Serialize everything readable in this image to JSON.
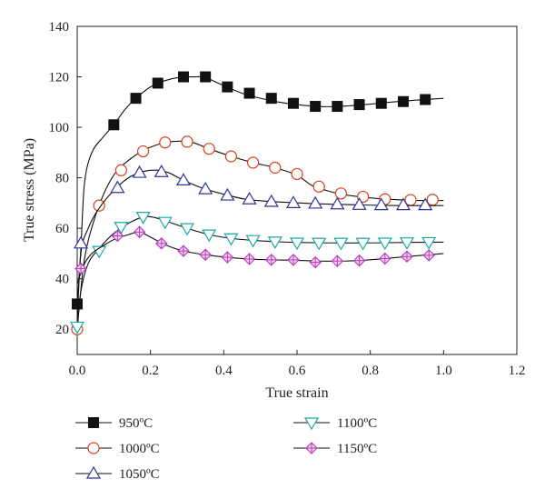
{
  "chart_data": {
    "type": "line",
    "xlabel": "True strain",
    "ylabel": "True stress (MPa)",
    "xlim": [
      0.0,
      1.2
    ],
    "ylim": [
      10,
      140
    ],
    "xticks": [
      0.0,
      0.2,
      0.4,
      0.6,
      0.8,
      1.0,
      1.2
    ],
    "yticks": [
      20,
      40,
      60,
      80,
      100,
      120,
      140
    ],
    "xtick_labels": [
      "0.0",
      "0.2",
      "0.4",
      "0.6",
      "0.8",
      "1.0",
      "1.2"
    ],
    "ytick_labels": [
      "20",
      "40",
      "60",
      "80",
      "100",
      "120",
      "140"
    ],
    "grid": false,
    "legend_position": "below",
    "series": [
      {
        "name": "950ºC",
        "marker": "square",
        "color": "#111111",
        "line": [
          [
            0.0,
            30
          ],
          [
            0.01,
            52
          ],
          [
            0.02,
            78
          ],
          [
            0.04,
            90
          ],
          [
            0.07,
            96
          ],
          [
            0.1,
            101
          ],
          [
            0.13,
            107
          ],
          [
            0.16,
            111.5
          ],
          [
            0.2,
            116
          ],
          [
            0.24,
            118.5
          ],
          [
            0.28,
            119.8
          ],
          [
            0.32,
            120
          ],
          [
            0.35,
            119.7
          ],
          [
            0.4,
            116.5
          ],
          [
            0.45,
            113.5
          ],
          [
            0.5,
            111.5
          ],
          [
            0.55,
            110
          ],
          [
            0.6,
            109
          ],
          [
            0.65,
            108.3
          ],
          [
            0.7,
            108.2
          ],
          [
            0.75,
            108.6
          ],
          [
            0.8,
            109.2
          ],
          [
            0.85,
            109.9
          ],
          [
            0.9,
            110.5
          ],
          [
            0.95,
            111
          ],
          [
            1.0,
            111.5
          ]
        ],
        "markers": [
          [
            0.0,
            30
          ],
          [
            0.1,
            101
          ],
          [
            0.16,
            111.5
          ],
          [
            0.22,
            117.5
          ],
          [
            0.29,
            120
          ],
          [
            0.35,
            120
          ],
          [
            0.41,
            116
          ],
          [
            0.47,
            113.5
          ],
          [
            0.53,
            111.5
          ],
          [
            0.59,
            109.5
          ],
          [
            0.65,
            108.3
          ],
          [
            0.71,
            108.3
          ],
          [
            0.77,
            109
          ],
          [
            0.83,
            109.5
          ],
          [
            0.89,
            110.2
          ],
          [
            0.95,
            111
          ]
        ]
      },
      {
        "name": "1000ºC",
        "marker": "circle",
        "color": "#d9401a",
        "line": [
          [
            0.0,
            20
          ],
          [
            0.02,
            48
          ],
          [
            0.05,
            65
          ],
          [
            0.08,
            76
          ],
          [
            0.11,
            83
          ],
          [
            0.15,
            88
          ],
          [
            0.19,
            91.5
          ],
          [
            0.24,
            94
          ],
          [
            0.28,
            94.5
          ],
          [
            0.31,
            94.3
          ],
          [
            0.36,
            91.5
          ],
          [
            0.42,
            88.5
          ],
          [
            0.48,
            86
          ],
          [
            0.54,
            84
          ],
          [
            0.6,
            81
          ],
          [
            0.64,
            77
          ],
          [
            0.68,
            75
          ],
          [
            0.72,
            73.5
          ],
          [
            0.77,
            72.5
          ],
          [
            0.82,
            71.8
          ],
          [
            0.88,
            71.3
          ],
          [
            0.94,
            71
          ],
          [
            1.0,
            71
          ]
        ],
        "markers": [
          [
            0.0,
            20
          ],
          [
            0.06,
            69
          ],
          [
            0.12,
            83
          ],
          [
            0.18,
            90.5
          ],
          [
            0.24,
            94
          ],
          [
            0.3,
            94.3
          ],
          [
            0.36,
            91.5
          ],
          [
            0.42,
            88.5
          ],
          [
            0.48,
            86
          ],
          [
            0.54,
            84
          ],
          [
            0.6,
            81.5
          ],
          [
            0.66,
            76.5
          ],
          [
            0.72,
            73.8
          ],
          [
            0.78,
            72.5
          ],
          [
            0.84,
            71.5
          ],
          [
            0.91,
            71.2
          ],
          [
            0.97,
            71.3
          ]
        ]
      },
      {
        "name": "1050ºC",
        "marker": "triangle-up",
        "color": "#2f3596",
        "line": [
          [
            0.0,
            22
          ],
          [
            0.01,
            50
          ],
          [
            0.03,
            60
          ],
          [
            0.06,
            68
          ],
          [
            0.1,
            75
          ],
          [
            0.14,
            80
          ],
          [
            0.18,
            82.5
          ],
          [
            0.22,
            83
          ],
          [
            0.25,
            82
          ],
          [
            0.29,
            79
          ],
          [
            0.34,
            76
          ],
          [
            0.4,
            73.5
          ],
          [
            0.46,
            71.5
          ],
          [
            0.52,
            70.7
          ],
          [
            0.58,
            70.2
          ],
          [
            0.64,
            69.8
          ],
          [
            0.7,
            69.5
          ],
          [
            0.76,
            69.3
          ],
          [
            0.82,
            69.1
          ],
          [
            0.88,
            69
          ],
          [
            0.94,
            69
          ],
          [
            1.0,
            69
          ]
        ],
        "markers": [
          [
            0.01,
            54
          ],
          [
            0.11,
            76
          ],
          [
            0.17,
            82
          ],
          [
            0.23,
            82.3
          ],
          [
            0.29,
            79
          ],
          [
            0.35,
            75.5
          ],
          [
            0.41,
            73
          ],
          [
            0.47,
            71.5
          ],
          [
            0.53,
            70.5
          ],
          [
            0.59,
            70
          ],
          [
            0.65,
            69.8
          ],
          [
            0.71,
            69.5
          ],
          [
            0.77,
            69.3
          ],
          [
            0.83,
            69.2
          ],
          [
            0.89,
            69.2
          ],
          [
            0.95,
            69.2
          ]
        ]
      },
      {
        "name": "1100ºC",
        "marker": "triangle-down",
        "color": "#1aa8a8",
        "line": [
          [
            0.0,
            20
          ],
          [
            0.01,
            35
          ],
          [
            0.03,
            46
          ],
          [
            0.06,
            52
          ],
          [
            0.1,
            58
          ],
          [
            0.14,
            62
          ],
          [
            0.18,
            64.5
          ],
          [
            0.21,
            64.3
          ],
          [
            0.25,
            62.5
          ],
          [
            0.3,
            60
          ],
          [
            0.36,
            57.5
          ],
          [
            0.42,
            56
          ],
          [
            0.48,
            55.2
          ],
          [
            0.54,
            54.7
          ],
          [
            0.6,
            54.4
          ],
          [
            0.7,
            54.2
          ],
          [
            0.8,
            54.2
          ],
          [
            0.9,
            54.4
          ],
          [
            1.0,
            54.5
          ]
        ],
        "markers": [
          [
            0.0,
            21
          ],
          [
            0.06,
            51
          ],
          [
            0.12,
            60.5
          ],
          [
            0.18,
            64.5
          ],
          [
            0.24,
            62.5
          ],
          [
            0.3,
            60
          ],
          [
            0.36,
            57.5
          ],
          [
            0.42,
            56
          ],
          [
            0.48,
            55.3
          ],
          [
            0.54,
            54.7
          ],
          [
            0.6,
            54.3
          ],
          [
            0.66,
            54.2
          ],
          [
            0.72,
            54.2
          ],
          [
            0.78,
            54.2
          ],
          [
            0.84,
            54.3
          ],
          [
            0.9,
            54.4
          ],
          [
            0.96,
            54.5
          ]
        ]
      },
      {
        "name": "1150ºC",
        "marker": "diamond-cross",
        "color": "#b53ab5",
        "line": [
          [
            0.0,
            38
          ],
          [
            0.02,
            46
          ],
          [
            0.04,
            50
          ],
          [
            0.07,
            53
          ],
          [
            0.1,
            55.5
          ],
          [
            0.14,
            57.5
          ],
          [
            0.17,
            58.5
          ],
          [
            0.2,
            56.5
          ],
          [
            0.24,
            53.5
          ],
          [
            0.29,
            51
          ],
          [
            0.35,
            49.5
          ],
          [
            0.41,
            48.5
          ],
          [
            0.47,
            47.8
          ],
          [
            0.53,
            47.5
          ],
          [
            0.6,
            47.3
          ],
          [
            0.66,
            47
          ],
          [
            0.72,
            47
          ],
          [
            0.78,
            47.3
          ],
          [
            0.84,
            48
          ],
          [
            0.9,
            48.8
          ],
          [
            0.96,
            49.5
          ],
          [
            1.0,
            50
          ]
        ],
        "markers": [
          [
            0.01,
            44
          ],
          [
            0.11,
            57
          ],
          [
            0.17,
            58.5
          ],
          [
            0.23,
            54
          ],
          [
            0.29,
            51
          ],
          [
            0.35,
            49.5
          ],
          [
            0.41,
            48.5
          ],
          [
            0.47,
            47.8
          ],
          [
            0.53,
            47.5
          ],
          [
            0.59,
            47.5
          ],
          [
            0.65,
            46.5
          ],
          [
            0.71,
            47
          ],
          [
            0.77,
            47.2
          ],
          [
            0.84,
            48
          ],
          [
            0.9,
            48.8
          ],
          [
            0.96,
            49.3
          ]
        ]
      }
    ]
  }
}
